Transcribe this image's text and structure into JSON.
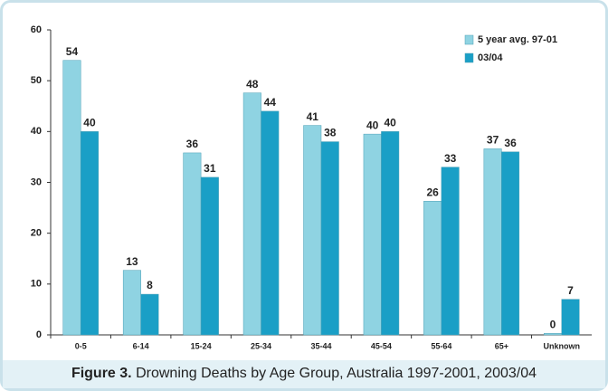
{
  "chart_data": {
    "type": "bar",
    "caption_label": "Figure 3.",
    "caption": "Drowning Deaths by Age Group, Australia 1997-2001, 2003/04",
    "categories": [
      "0-5",
      "6-14",
      "15-24",
      "25-34",
      "35-44",
      "45-54",
      "55-64",
      "65+",
      "Unknown"
    ],
    "series": [
      {
        "name": "5 year avg. 97-01",
        "color": "#8fd3e2",
        "values": [
          54,
          12.7,
          35.8,
          47.6,
          41.2,
          39.5,
          26.3,
          36.6,
          0.3
        ],
        "value_labels": [
          "54",
          "13",
          "36",
          "48",
          "41",
          "40",
          "26",
          "37",
          "0"
        ]
      },
      {
        "name": "03/04",
        "color": "#1a9fc6",
        "values": [
          40,
          8,
          31,
          44,
          38,
          40,
          33,
          36,
          7
        ],
        "value_labels": [
          "40",
          "8",
          "31",
          "44",
          "38",
          "40",
          "33",
          "36",
          "7"
        ]
      }
    ],
    "ylim": [
      0,
      60
    ],
    "yticks": [
      0,
      10,
      20,
      30,
      40,
      50,
      60
    ],
    "grid": false,
    "legend": "top-right"
  }
}
